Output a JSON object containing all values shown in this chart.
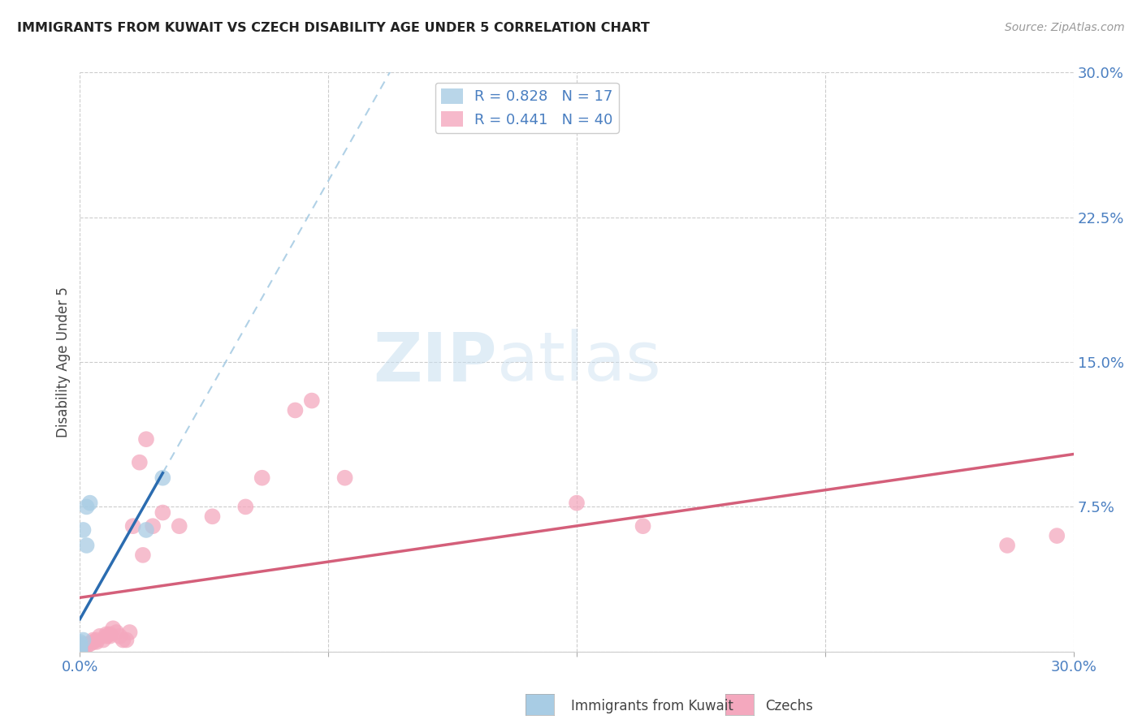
{
  "title": "IMMIGRANTS FROM KUWAIT VS CZECH DISABILITY AGE UNDER 5 CORRELATION CHART",
  "source": "Source: ZipAtlas.com",
  "xlabel_label": "Immigrants from Kuwait",
  "ylabel_label": "Disability Age Under 5",
  "xlim": [
    0.0,
    0.3
  ],
  "ylim": [
    0.0,
    0.3
  ],
  "xticks": [
    0.0,
    0.075,
    0.15,
    0.225,
    0.3
  ],
  "yticks": [
    0.0,
    0.075,
    0.15,
    0.225,
    0.3
  ],
  "xtick_labels": [
    "0.0%",
    "",
    "",
    "",
    "30.0%"
  ],
  "ytick_labels": [
    "",
    "7.5%",
    "15.0%",
    "22.5%",
    "30.0%"
  ],
  "grid_color": "#cccccc",
  "background_color": "#ffffff",
  "kuwait_color": "#a8cce4",
  "czech_color": "#f4a8be",
  "kuwait_line_color": "#2b6cb0",
  "czech_line_color": "#d45f7a",
  "kuwait_dash_color": "#a8cce4",
  "watermark_zip": "ZIP",
  "watermark_atlas": "atlas",
  "legend_r_kuwait": "0.828",
  "legend_n_kuwait": "17",
  "legend_r_czech": "0.441",
  "legend_n_czech": "40",
  "kuwait_points_x": [
    0.0,
    0.0,
    0.0,
    0.0,
    0.0,
    0.0,
    0.0,
    0.0,
    0.0,
    0.0,
    0.001,
    0.001,
    0.002,
    0.002,
    0.003,
    0.02,
    0.025
  ],
  "kuwait_points_y": [
    0.0,
    0.0,
    0.001,
    0.001,
    0.002,
    0.002,
    0.003,
    0.003,
    0.004,
    0.005,
    0.006,
    0.063,
    0.055,
    0.075,
    0.077,
    0.063,
    0.09
  ],
  "czech_points_x": [
    0.0,
    0.0,
    0.0,
    0.001,
    0.001,
    0.002,
    0.003,
    0.004,
    0.004,
    0.005,
    0.005,
    0.006,
    0.007,
    0.008,
    0.008,
    0.009,
    0.009,
    0.01,
    0.011,
    0.012,
    0.013,
    0.014,
    0.015,
    0.016,
    0.018,
    0.019,
    0.02,
    0.022,
    0.025,
    0.03,
    0.04,
    0.05,
    0.055,
    0.065,
    0.07,
    0.08,
    0.15,
    0.17,
    0.28,
    0.295
  ],
  "czech_points_y": [
    0.001,
    0.002,
    0.003,
    0.002,
    0.004,
    0.003,
    0.004,
    0.005,
    0.006,
    0.005,
    0.006,
    0.008,
    0.006,
    0.008,
    0.009,
    0.008,
    0.009,
    0.012,
    0.01,
    0.008,
    0.006,
    0.006,
    0.01,
    0.065,
    0.098,
    0.05,
    0.11,
    0.065,
    0.072,
    0.065,
    0.07,
    0.075,
    0.09,
    0.125,
    0.13,
    0.09,
    0.077,
    0.065,
    0.055,
    0.06
  ]
}
